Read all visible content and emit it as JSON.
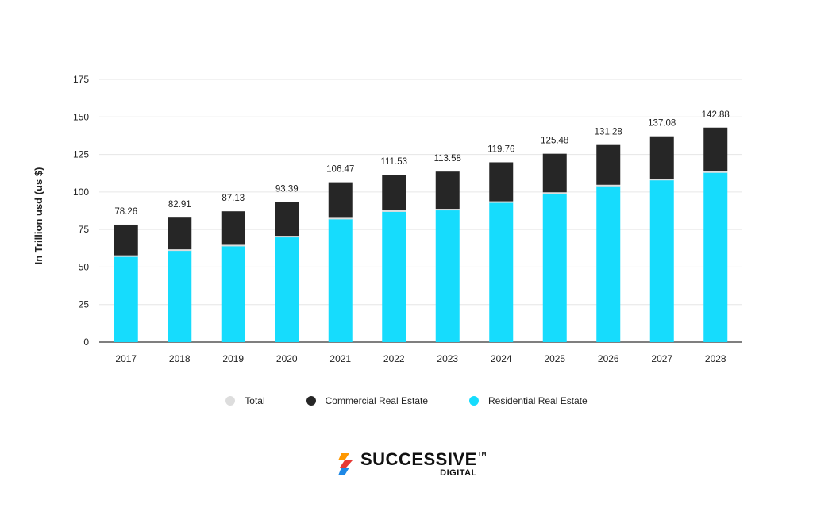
{
  "chart_data": {
    "type": "bar",
    "stacked": true,
    "title": "",
    "xlabel": "",
    "ylabel": "In Trillion usd (us $)",
    "ylim": [
      0,
      175
    ],
    "yticks": [
      0,
      25,
      50,
      75,
      100,
      125,
      150,
      175
    ],
    "grid": true,
    "legend_position": "bottom",
    "categories": [
      "2017",
      "2018",
      "2019",
      "2020",
      "2021",
      "2022",
      "2023",
      "2024",
      "2025",
      "2026",
      "2027",
      "2028"
    ],
    "series": [
      {
        "name": "Residential Real Estate",
        "color": "#16dcfd",
        "values": [
          57,
          61,
          64,
          70,
          82,
          87,
          88,
          93,
          99,
          104,
          108,
          113
        ]
      },
      {
        "name": "Commercial Real Estate",
        "color": "#262626",
        "values": [
          21.26,
          21.91,
          23.13,
          23.39,
          24.47,
          24.53,
          25.58,
          26.76,
          26.48,
          27.28,
          29.08,
          29.88
        ]
      }
    ],
    "totals": {
      "name": "Total",
      "color": "#dddddd",
      "values": [
        78.26,
        82.91,
        87.13,
        93.39,
        106.47,
        111.53,
        113.58,
        119.76,
        125.48,
        131.28,
        137.08,
        142.88
      ]
    },
    "data_labels": [
      "78.26",
      "82.91",
      "87.13",
      "93.39",
      "106.47",
      "111.53",
      "113.58",
      "119.76",
      "125.48",
      "131.28",
      "137.08",
      "142.88"
    ]
  },
  "legend": {
    "items": [
      {
        "label": "Total",
        "color": "#dddddd"
      },
      {
        "label": "Commercial Real Estate",
        "color": "#262626"
      },
      {
        "label": "Residential Real Estate",
        "color": "#16dcfd"
      }
    ]
  },
  "brand": {
    "name": "SUCCESSIVE",
    "tm": "TM",
    "sub": "DIGITAL",
    "colors": [
      "#1e88e5",
      "#ff9800",
      "#e53935"
    ]
  }
}
